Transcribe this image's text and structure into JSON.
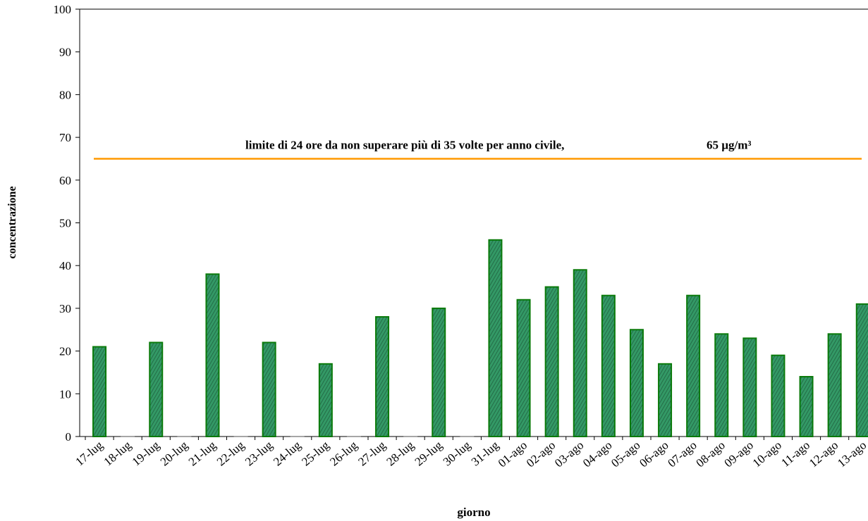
{
  "chart_data": {
    "type": "bar",
    "categories": [
      "17-lug",
      "18-lug",
      "19-lug",
      "20-lug",
      "21-lug",
      "22-lug",
      "23-lug",
      "24-lug",
      "25-lug",
      "26-lug",
      "27-lug",
      "28-lug",
      "29-lug",
      "30-lug",
      "31-lug",
      "01-ago",
      "02-ago",
      "03-ago",
      "04-ago",
      "05-ago",
      "06-ago",
      "07-ago",
      "08-ago",
      "09-ago",
      "10-ago",
      "11-ago",
      "12-ago",
      "13-ago"
    ],
    "values": [
      21,
      0,
      22,
      0,
      38,
      0,
      22,
      0,
      17,
      0,
      28,
      0,
      30,
      0,
      46,
      32,
      35,
      39,
      33,
      25,
      17,
      33,
      24,
      23,
      19,
      14,
      24,
      31
    ],
    "color": "#339966",
    "ylim": [
      0,
      100
    ],
    "yticks": [
      0,
      10,
      20,
      30,
      40,
      50,
      60,
      70,
      80,
      90,
      100
    ],
    "y_label": "concentrazione",
    "x_label": "giorno",
    "threshold": {
      "value": 65,
      "text": "limite di 24 ore da non superare più di 35 volte per anno civile,",
      "label": "65 µg/m³",
      "color": "#ff9900"
    }
  }
}
